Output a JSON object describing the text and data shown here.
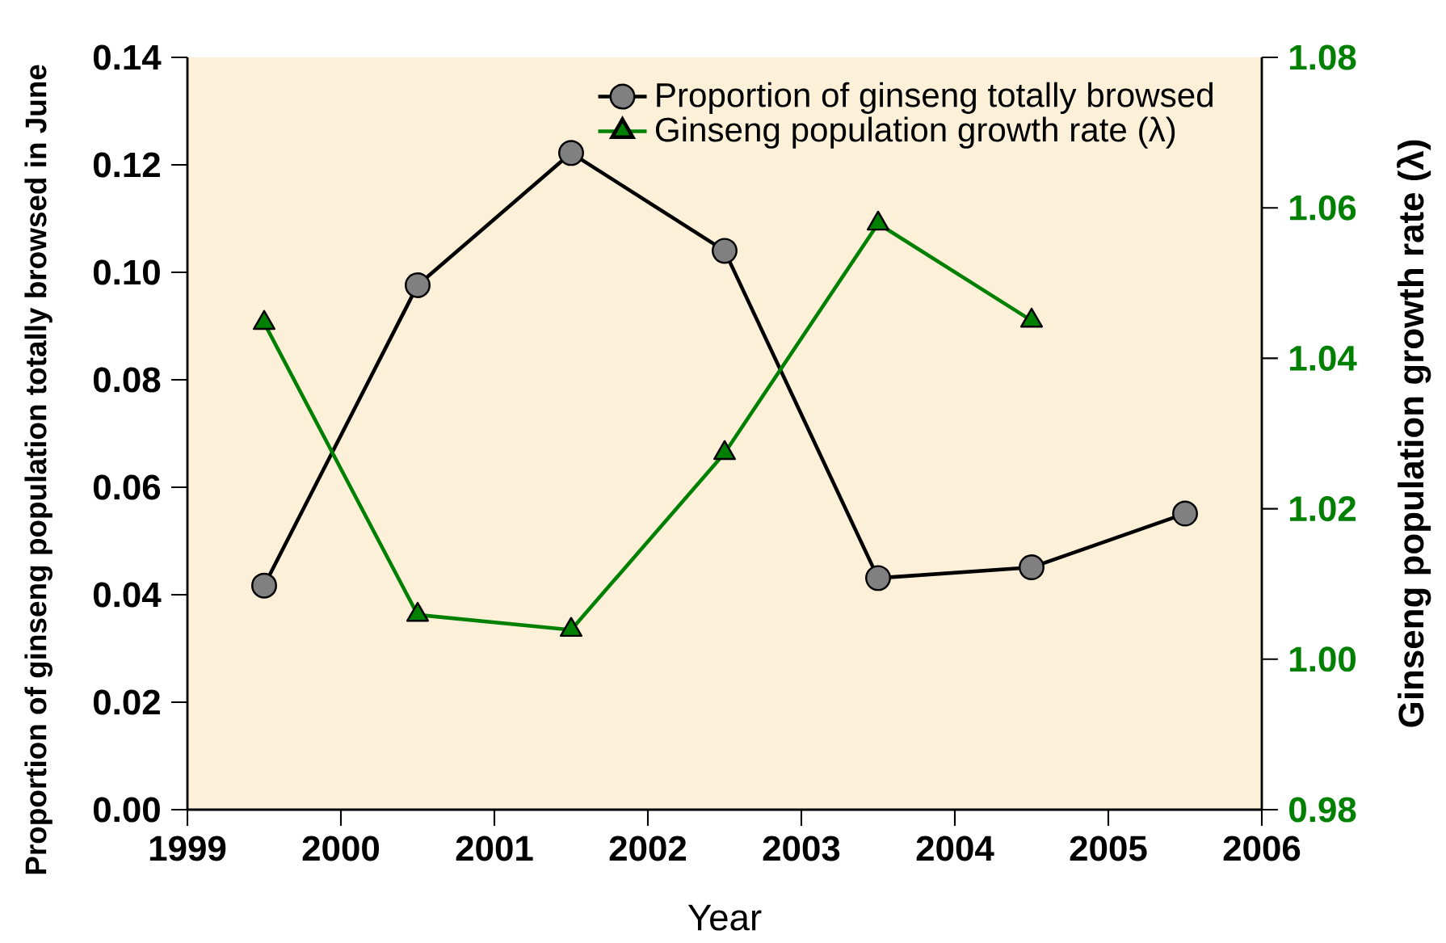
{
  "chart_data": {
    "type": "line",
    "xlabel": "Year",
    "ylabel": "Proportion of ginseng population totally browsed in June",
    "y2label": "Ginseng population growth rate (λ)",
    "x": [
      1999.5,
      2000.5,
      2001.5,
      2002.5,
      2003.5,
      2004.5,
      2005.5
    ],
    "series": [
      {
        "name": "Proportion of ginseng totally browsed",
        "color": "#000000",
        "marker": "circle",
        "values": [
          0.0417,
          0.0976,
          0.1222,
          0.104,
          0.0431,
          0.0451,
          0.0551
        ]
      },
      {
        "name": "Ginseng population growth rate (λ)",
        "color": "#008000",
        "marker": "triangle",
        "axis": "y2",
        "values": [
          1.0447,
          1.0059,
          1.0039,
          1.0274,
          1.0579,
          1.045,
          null
        ]
      }
    ],
    "xlim": [
      1999,
      2006
    ],
    "xticks": [
      1999,
      2000,
      2001,
      2002,
      2003,
      2004,
      2005,
      2006
    ],
    "ylim": [
      0,
      0.14
    ],
    "yticks": [
      {
        "value": 0,
        "label": "0.00"
      },
      {
        "value": 0.02,
        "label": "0.02"
      },
      {
        "value": 0.04,
        "label": "0.04"
      },
      {
        "value": 0.06,
        "label": "0.06"
      },
      {
        "value": 0.08,
        "label": "0.08"
      },
      {
        "value": 0.1,
        "label": "0.10"
      },
      {
        "value": 0.12,
        "label": "0.12"
      },
      {
        "value": 0.14,
        "label": "0.14"
      }
    ],
    "y2lim": [
      0.98,
      1.08
    ],
    "y2ticks": [
      {
        "value": 0.98,
        "label": "0.98"
      },
      {
        "value": 1.0,
        "label": "1.00"
      },
      {
        "value": 1.02,
        "label": "1.02"
      },
      {
        "value": 1.04,
        "label": "1.04"
      },
      {
        "value": 1.06,
        "label": "1.06"
      },
      {
        "value": 1.08,
        "label": "1.08"
      }
    ],
    "legend": "top right",
    "grid": false
  }
}
